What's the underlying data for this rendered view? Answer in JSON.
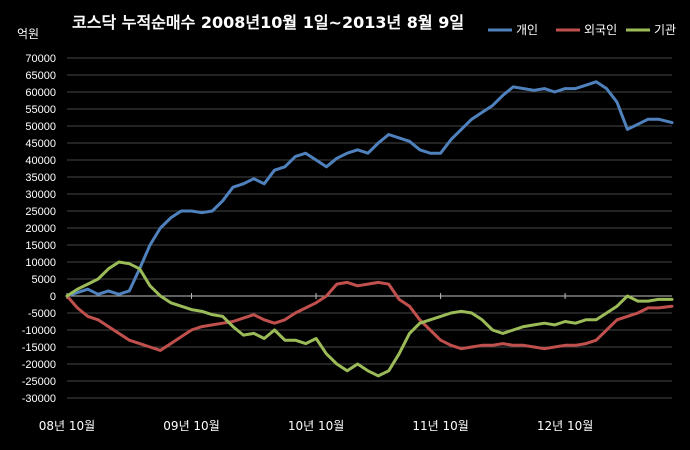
{
  "chart_data": {
    "type": "line",
    "title": "코스닥 누적순매수 2008년10월 1일~2013년 8월 9일",
    "ylabel": "억원",
    "ylim": [
      -30000,
      70000
    ],
    "yticks": [
      -30000,
      -25000,
      -20000,
      -15000,
      -10000,
      -5000,
      0,
      5000,
      10000,
      15000,
      20000,
      25000,
      30000,
      35000,
      40000,
      45000,
      50000,
      55000,
      60000,
      65000,
      70000
    ],
    "xticks": [
      {
        "label": "08년 10월",
        "x": 0
      },
      {
        "label": "09년 10월",
        "x": 12
      },
      {
        "label": "10년 10월",
        "x": 24
      },
      {
        "label": "11년 10월",
        "x": 36
      },
      {
        "label": "12년 10월",
        "x": 48
      }
    ],
    "xlim": [
      0,
      58.3
    ],
    "grid": true,
    "legend": "top-right",
    "colors": {
      "개인": "#4f81bd",
      "외국인": "#c0504d",
      "기관": "#9bbb59",
      "background": "#000000"
    },
    "x": [
      0,
      1,
      2,
      3,
      4,
      5,
      6,
      7,
      8,
      9,
      10,
      11,
      12,
      13,
      14,
      15,
      16,
      17,
      18,
      19,
      20,
      21,
      22,
      23,
      24,
      25,
      26,
      27,
      28,
      29,
      30,
      31,
      32,
      33,
      34,
      35,
      36,
      37,
      38,
      39,
      40,
      41,
      42,
      43,
      44,
      45,
      46,
      47,
      48,
      49,
      50,
      51,
      52,
      53,
      54,
      55,
      56,
      57,
      58.3
    ],
    "series": [
      {
        "name": "개인",
        "values": [
          0,
          1000,
          2000,
          500,
          1500,
          500,
          1500,
          8000,
          15000,
          20000,
          23000,
          25000,
          25000,
          24500,
          25000,
          28000,
          32000,
          33000,
          34500,
          33000,
          37000,
          38000,
          41000,
          42000,
          40000,
          38000,
          40500,
          42000,
          43000,
          42000,
          45000,
          47500,
          46500,
          45500,
          43000,
          42000,
          42000,
          46000,
          49000,
          52000,
          54000,
          56000,
          59000,
          61500,
          61000,
          60500,
          61000,
          60000,
          61000,
          61000,
          62000,
          63000,
          61000,
          57000,
          49000,
          50500,
          52000,
          52000,
          51000
        ]
      },
      {
        "name": "외국인",
        "values": [
          0,
          -3500,
          -6000,
          -7000,
          -9000,
          -11000,
          -13000,
          -14000,
          -15000,
          -16000,
          -14000,
          -12000,
          -10000,
          -9000,
          -8500,
          -8000,
          -7500,
          -6500,
          -5500,
          -7000,
          -8000,
          -7000,
          -5000,
          -3500,
          -2000,
          0,
          3500,
          4000,
          3000,
          3500,
          4000,
          3500,
          -1000,
          -3000,
          -7000,
          -10000,
          -13000,
          -14500,
          -15500,
          -15000,
          -14500,
          -14500,
          -14000,
          -14500,
          -14500,
          -15000,
          -15500,
          -15000,
          -14500,
          -14500,
          -14000,
          -13000,
          -10000,
          -7000,
          -6000,
          -5000,
          -3500,
          -3500,
          -3000
        ]
      },
      {
        "name": "기관",
        "values": [
          0,
          2000,
          3500,
          5000,
          8000,
          10000,
          9500,
          8000,
          3000,
          0,
          -2000,
          -3000,
          -4000,
          -4500,
          -5500,
          -6000,
          -9000,
          -11500,
          -11000,
          -12500,
          -10000,
          -13000,
          -13000,
          -14000,
          -12500,
          -17000,
          -20000,
          -22000,
          -20000,
          -22000,
          -23500,
          -22000,
          -17000,
          -11000,
          -8000,
          -7000,
          -6000,
          -5000,
          -4500,
          -5000,
          -7000,
          -10000,
          -11000,
          -10000,
          -9000,
          -8500,
          -8000,
          -8500,
          -7500,
          -8000,
          -7000,
          -7000,
          -5000,
          -3000,
          0,
          -1500,
          -1500,
          -1000,
          -1000
        ]
      }
    ]
  }
}
